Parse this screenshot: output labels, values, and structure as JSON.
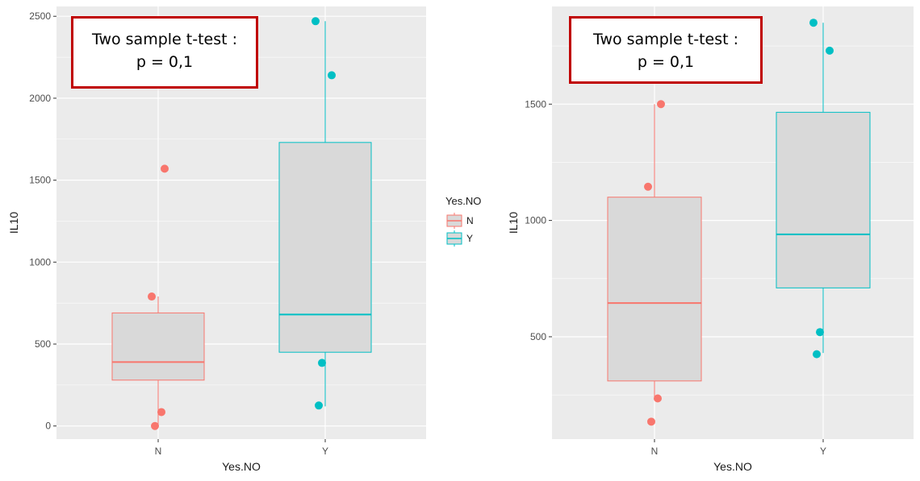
{
  "chart_data": [
    {
      "type": "box",
      "xlabel": "Yes.NO",
      "ylabel": "IL10",
      "categories": [
        "N",
        "Y"
      ],
      "ylim": [
        -80,
        2560
      ],
      "yticks": [
        0,
        500,
        1000,
        1500,
        2000,
        2500
      ],
      "ytick_labels": [
        "0",
        "500",
        "1000",
        "1500",
        "2000",
        "2500"
      ],
      "grid": true,
      "series": [
        {
          "category": "N",
          "color": "#f8766d",
          "whisker_low": 5,
          "q1": 280,
          "median": 390,
          "q3": 690,
          "whisker_high": 790,
          "outliers": [
            1570,
            790,
            85,
            0
          ]
        },
        {
          "category": "Y",
          "color": "#00bfc4",
          "whisker_low": 120,
          "q1": 450,
          "median": 680,
          "q3": 1730,
          "whisker_high": 2470,
          "outliers": [
            2470,
            2140,
            385,
            125
          ]
        }
      ],
      "annotation": {
        "line1": "Two sample t-test :",
        "line2": "p = 0,1"
      }
    },
    {
      "type": "box",
      "xlabel": "Yes.NO",
      "ylabel": "IL10",
      "categories": [
        "N",
        "Y"
      ],
      "ylim": [
        60,
        1920
      ],
      "yticks": [
        500,
        1000,
        1500
      ],
      "ytick_labels": [
        "500",
        "1000",
        "1500"
      ],
      "grid": true,
      "series": [
        {
          "category": "N",
          "color": "#f8766d",
          "whisker_low": 230,
          "q1": 310,
          "median": 645,
          "q3": 1100,
          "whisker_high": 1500,
          "outliers": [
            1500,
            1145,
            235,
            135
          ]
        },
        {
          "category": "Y",
          "color": "#00bfc4",
          "whisker_low": 430,
          "q1": 710,
          "median": 940,
          "q3": 1465,
          "whisker_high": 1850,
          "outliers": [
            1850,
            1730,
            520,
            425
          ]
        }
      ],
      "annotation": {
        "line1": "Two sample t-test :",
        "line2": "p = 0,1"
      }
    }
  ],
  "legend": {
    "title": "Yes.NO",
    "items": [
      {
        "label": "N",
        "color": "#f8766d"
      },
      {
        "label": "Y",
        "color": "#00bfc4"
      }
    ]
  },
  "colors": {
    "panel_bg": "#ebebeb",
    "grid": "#ffffff",
    "box_fill": "#d9d9d9",
    "annot_border": "#c00000",
    "axis_text": "#4d4d4d"
  }
}
